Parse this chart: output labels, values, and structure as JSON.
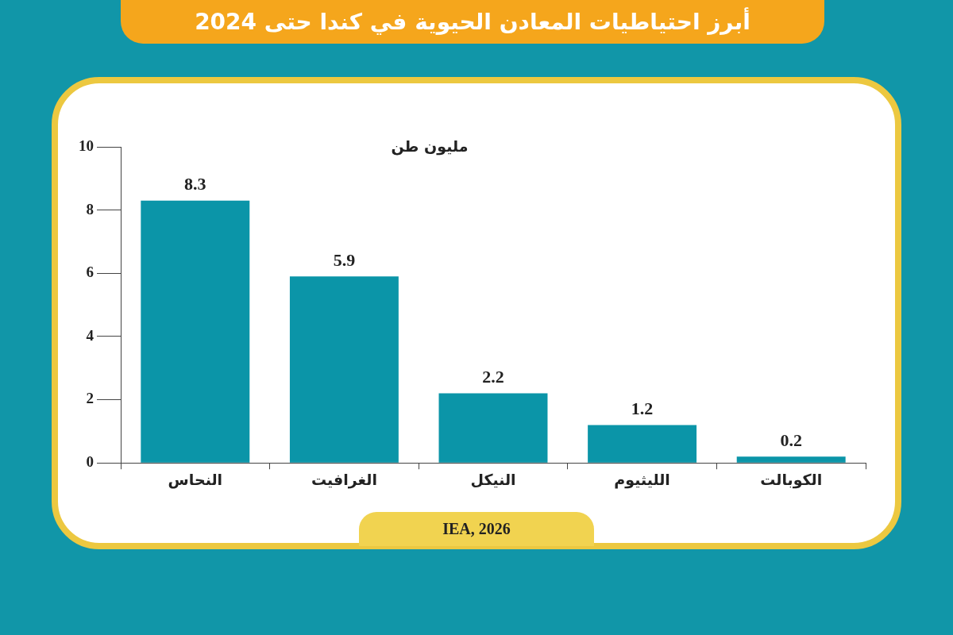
{
  "chart_data": {
    "type": "bar",
    "title": "أبرز احتياطيات المعادن الحيوية في كندا حتى 2024",
    "ylabel": "مليون طن",
    "categories": [
      "النحاس",
      "الغرافيت",
      "النيكل",
      "الليثيوم",
      "الكوبالت"
    ],
    "values": [
      8.3,
      5.9,
      2.2,
      1.2,
      0.2
    ],
    "color": "#0b95a8",
    "ylim": [
      0,
      10
    ],
    "yticks": [
      0,
      2,
      4,
      6,
      8,
      10
    ],
    "grid": false,
    "legend": false,
    "data_labels": true,
    "annotations": [
      "IEA, 2026"
    ]
  }
}
